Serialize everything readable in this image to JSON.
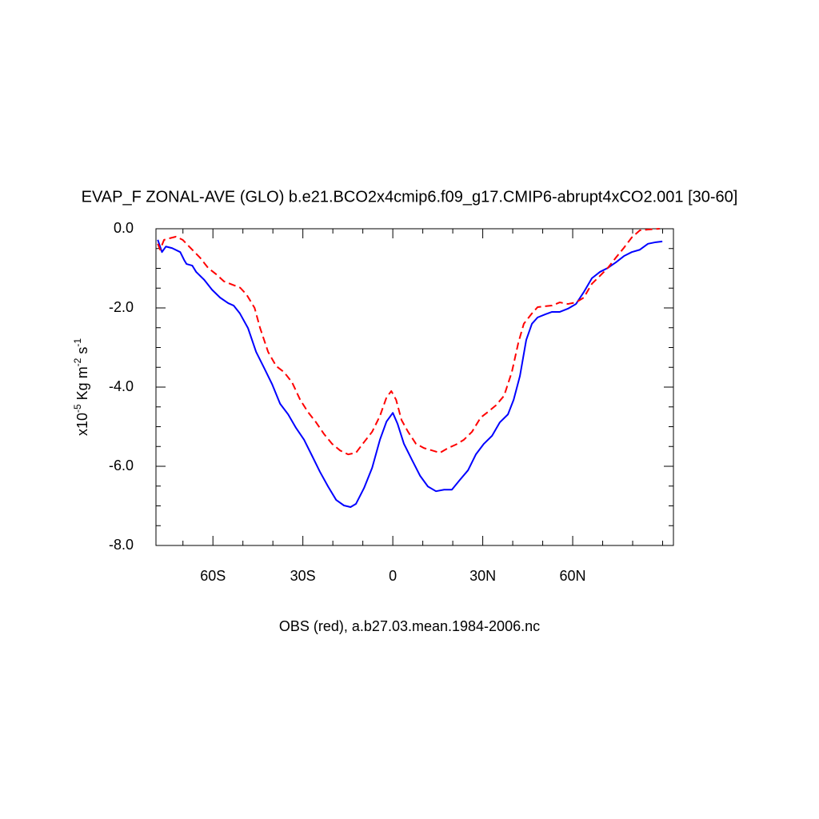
{
  "chart_data": {
    "type": "line",
    "title": "EVAP_F ZONAL-AVE (GLO) b.e21.BCO2x4cmip6.f09_g17.CMIP6-abrupt4xCO2.001 [30-60]",
    "xlabel": "OBS (red), a.b27.03.mean.1984-2006.nc",
    "ylabel_parts": [
      "x10",
      "-5",
      " Kg m",
      "-2",
      " s",
      "-1"
    ],
    "xlim": [
      -79,
      93.6
    ],
    "xticks": [
      {
        "value": -60,
        "label": "60S"
      },
      {
        "value": -30,
        "label": "30S"
      },
      0,
      {
        "value": 30,
        "label": "30N"
      },
      {
        "value": 60,
        "label": "60N"
      }
    ],
    "xminorticks": [
      -70,
      -50,
      -40,
      -20,
      -10,
      10,
      20,
      40,
      50,
      70,
      80,
      90
    ],
    "ylim": [
      -8,
      0
    ],
    "yticks": [
      {
        "value": 0,
        "label": "0.0"
      },
      {
        "value": -2,
        "label": "-2.0"
      },
      {
        "value": -4,
        "label": "-4.0"
      },
      {
        "value": -6,
        "label": "-6.0"
      },
      {
        "value": -8,
        "label": "-8.0"
      }
    ],
    "yminorticks": [
      -0.5,
      -1,
      -1.5,
      -2.5,
      -3,
      -3.5,
      -4.5,
      -5,
      -5.5,
      -6.5,
      -7,
      -7.5
    ],
    "series": [
      {
        "color": "#0000ff",
        "dash": false,
        "x": [
          -78.4,
          -77,
          -75.7,
          -73.6,
          -70.9,
          -69.6,
          -68.8,
          -66.9,
          -65.6,
          -62.9,
          -60.3,
          -57.6,
          -54.9,
          -53.1,
          -51,
          -48.3,
          -45.6,
          -42.9,
          -40.3,
          -37.6,
          -34.9,
          -32.3,
          -29.6,
          -26.9,
          -24.3,
          -21.6,
          -18.9,
          -16.3,
          -14.1,
          -12.3,
          -9.6,
          -6.9,
          -4.3,
          -2.1,
          0,
          1.6,
          3.7,
          6.4,
          9.1,
          11.7,
          14.4,
          17.1,
          19.7,
          22.4,
          25.1,
          27.7,
          30.4,
          33.1,
          35.7,
          38.4,
          40.3,
          42.4,
          44.5,
          46.4,
          48.3,
          50.9,
          53.1,
          55.7,
          58.4,
          61.1,
          63.7,
          66.4,
          69.1,
          71.7,
          74.4,
          77.1,
          79.7,
          82.4,
          85.1,
          87.7,
          89.9
        ],
        "values": [
          -0.28,
          -0.59,
          -0.45,
          -0.49,
          -0.59,
          -0.79,
          -0.89,
          -0.93,
          -1.09,
          -1.29,
          -1.54,
          -1.74,
          -1.88,
          -1.94,
          -2.14,
          -2.51,
          -3.11,
          -3.52,
          -3.92,
          -4.42,
          -4.69,
          -5.03,
          -5.33,
          -5.74,
          -6.14,
          -6.51,
          -6.85,
          -6.99,
          -7.03,
          -6.95,
          -6.55,
          -6.04,
          -5.33,
          -4.87,
          -4.65,
          -4.93,
          -5.43,
          -5.84,
          -6.24,
          -6.51,
          -6.63,
          -6.59,
          -6.59,
          -6.34,
          -6.1,
          -5.7,
          -5.43,
          -5.23,
          -4.89,
          -4.69,
          -4.32,
          -3.72,
          -2.81,
          -2.4,
          -2.24,
          -2.16,
          -2.1,
          -2.1,
          -2.02,
          -1.9,
          -1.6,
          -1.25,
          -1.09,
          -0.99,
          -0.85,
          -0.69,
          -0.59,
          -0.53,
          -0.38,
          -0.34,
          -0.32
        ]
      },
      {
        "color": "#ff0000",
        "dash": true,
        "x": [
          -78.4,
          -77.6,
          -76.3,
          -74.4,
          -72.3,
          -70.1,
          -66.9,
          -64.3,
          -61.6,
          -58.9,
          -56.3,
          -53.6,
          -50.9,
          -48.8,
          -46.1,
          -44.3,
          -41.6,
          -38.9,
          -36.3,
          -33.6,
          -30.9,
          -28.3,
          -25.6,
          -22.9,
          -20.3,
          -17.6,
          -14.9,
          -12.3,
          -9.6,
          -6.9,
          -4.3,
          -2.1,
          -0.5,
          1.1,
          2.9,
          5.1,
          7.7,
          10.4,
          13.1,
          15.7,
          18.4,
          21.1,
          23.7,
          26.4,
          29.3,
          31.7,
          34.4,
          37.1,
          39.7,
          41.9,
          43.7,
          46.4,
          48.3,
          50.4,
          53.1,
          55.7,
          58.4,
          61.1,
          63.7,
          66.4,
          69.1,
          71.7,
          74.4,
          77.1,
          79.7,
          82.4,
          85.1,
          89
        ],
        "values": [
          -0.38,
          -0.53,
          -0.28,
          -0.24,
          -0.2,
          -0.28,
          -0.53,
          -0.73,
          -0.99,
          -1.15,
          -1.33,
          -1.41,
          -1.49,
          -1.66,
          -2,
          -2.5,
          -3.11,
          -3.47,
          -3.62,
          -3.88,
          -4.32,
          -4.63,
          -4.89,
          -5.19,
          -5.43,
          -5.6,
          -5.7,
          -5.66,
          -5.39,
          -5.13,
          -4.73,
          -4.26,
          -4.1,
          -4.32,
          -4.83,
          -5.13,
          -5.43,
          -5.54,
          -5.6,
          -5.66,
          -5.54,
          -5.45,
          -5.33,
          -5.13,
          -4.77,
          -4.63,
          -4.46,
          -4.22,
          -3.62,
          -2.87,
          -2.4,
          -2.14,
          -1.98,
          -1.96,
          -1.94,
          -1.86,
          -1.9,
          -1.86,
          -1.74,
          -1.39,
          -1.19,
          -0.99,
          -0.73,
          -0.48,
          -0.22,
          -0.04,
          -0.02,
          0
        ]
      }
    ]
  }
}
